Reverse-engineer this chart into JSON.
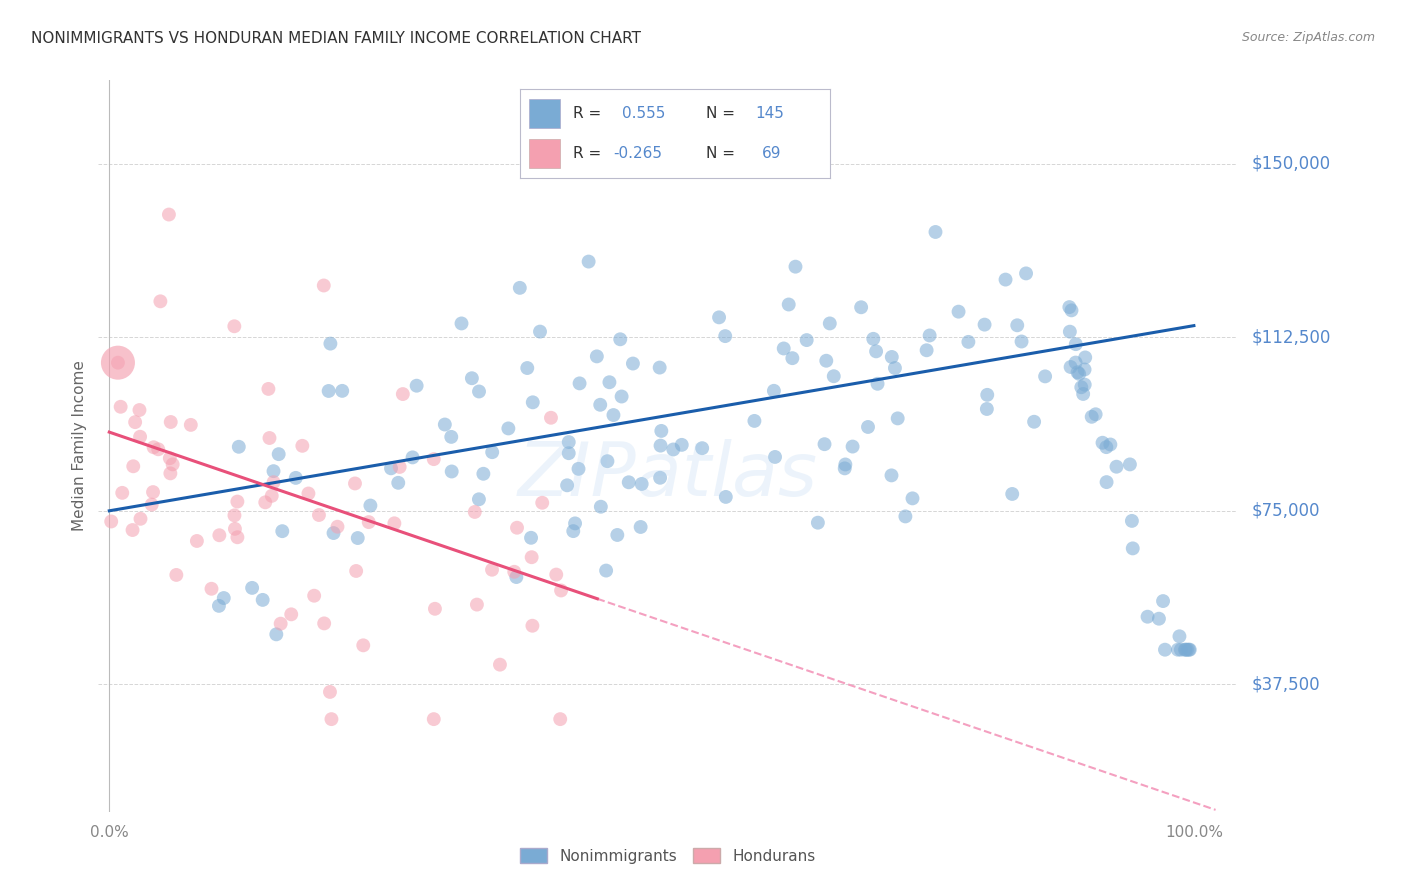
{
  "title": "NONIMMIGRANTS VS HONDURAN MEDIAN FAMILY INCOME CORRELATION CHART",
  "source": "Source: ZipAtlas.com",
  "ylabel": "Median Family Income",
  "y_tick_labels": [
    "$150,000",
    "$112,500",
    "$75,000",
    "$37,500"
  ],
  "y_tick_values": [
    150000,
    112500,
    75000,
    37500
  ],
  "y_min": 10000,
  "y_max": 168000,
  "x_min": -0.01,
  "x_max": 1.04,
  "blue_color": "#7AABD4",
  "pink_color": "#F4A0B0",
  "blue_line_color": "#1A5DAB",
  "pink_line_color": "#E8507A",
  "pink_dash_color": "#F4A0C0",
  "watermark": "ZIPatlas",
  "nonimmigrant_label": "Nonimmigrants",
  "honduran_label": "Hondurans",
  "blue_N": 145,
  "pink_N": 69,
  "blue_intercept": 75000,
  "blue_slope": 40000,
  "pink_intercept": 92000,
  "pink_slope": -80000,
  "grid_color": "#CCCCCC",
  "title_color": "#333333",
  "label_color": "#5588CC",
  "legend_text_color": "#333333"
}
